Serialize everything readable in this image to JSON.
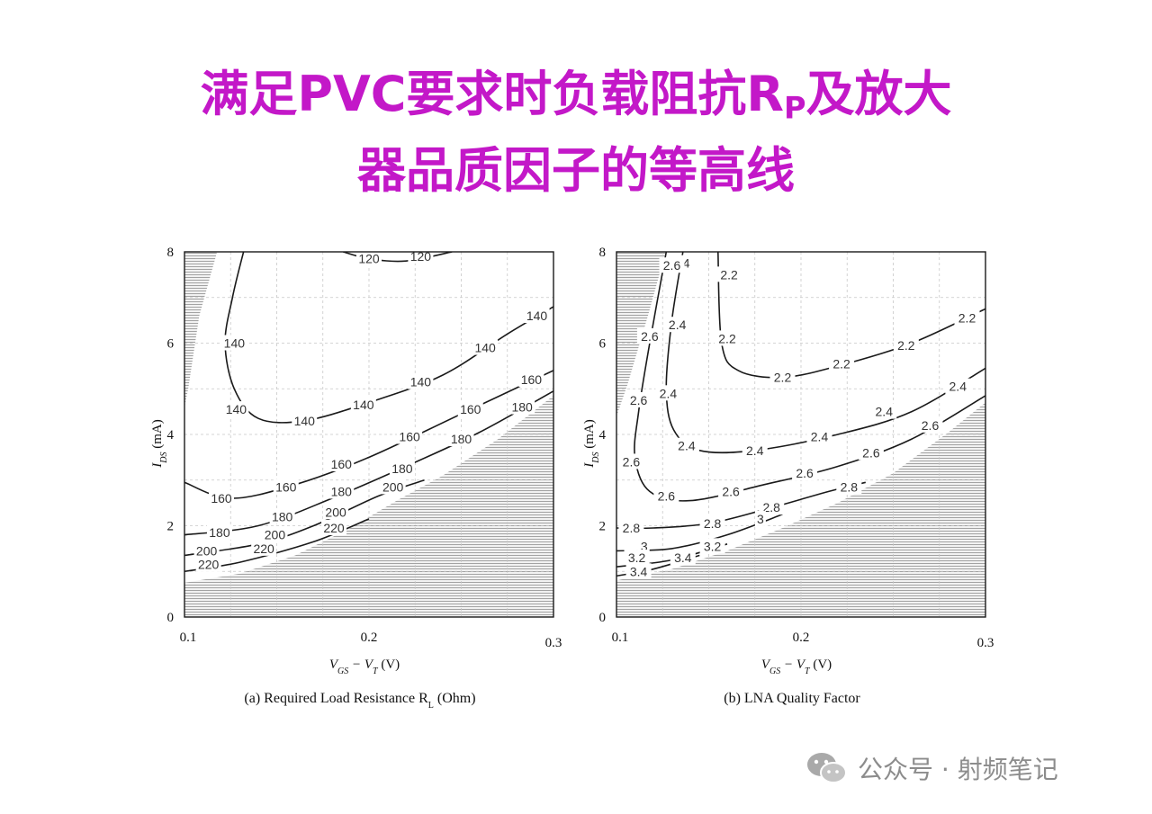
{
  "slide": {
    "title_line1_a": "满足PVC要求时负载阻抗R",
    "title_line1_sub": "P",
    "title_line1_b": "及放大",
    "title_line2": "器品质因子的等高线"
  },
  "watermark": {
    "text": "公众号 · 射频笔记",
    "icon": "wechat-icon"
  },
  "chart_data": [
    {
      "type": "contour",
      "caption": "(a) Required Load Resistance R",
      "caption_sub": "L",
      "caption_tail": " (Ohm)",
      "xlabel": "V",
      "xlabel_sub1": "GS",
      "xlabel_mid": " − V",
      "xlabel_sub2": "T",
      "xlabel_tail": " (V)",
      "ylabel": "I",
      "ylabel_sub": "DS",
      "ylabel_tail": " (mA)",
      "xlim": [
        0.1,
        0.3
      ],
      "ylim": [
        0,
        8
      ],
      "x_ticks": [
        "0.1",
        "0.2",
        "0.3"
      ],
      "y_ticks": [
        "0",
        "2",
        "4",
        "6",
        "8"
      ],
      "grid": true,
      "hatched_regions": [
        "upper-left",
        "lower-right"
      ],
      "contours": [
        {
          "level": "120",
          "points": [
            [
              0.186,
              8.0
            ],
            [
              0.2,
              7.85
            ],
            [
              0.22,
              7.8
            ],
            [
              0.245,
              8.0
            ]
          ],
          "labels": [
            [
              0.2,
              7.85
            ],
            [
              0.228,
              7.9
            ]
          ]
        },
        {
          "level": "140",
          "points": [
            [
              0.132,
              8.0
            ],
            [
              0.126,
              7.0
            ],
            [
              0.122,
              6.0
            ],
            [
              0.127,
              5.0
            ],
            [
              0.14,
              4.35
            ],
            [
              0.165,
              4.3
            ],
            [
              0.2,
              4.7
            ],
            [
              0.24,
              5.3
            ],
            [
              0.275,
              6.2
            ],
            [
              0.3,
              6.8
            ]
          ],
          "labels": [
            [
              0.127,
              6.0
            ],
            [
              0.128,
              4.55
            ],
            [
              0.165,
              4.3
            ],
            [
              0.197,
              4.65
            ],
            [
              0.228,
              5.15
            ],
            [
              0.263,
              5.9
            ],
            [
              0.291,
              6.6
            ]
          ]
        },
        {
          "level": "160",
          "points": [
            [
              0.1,
              2.95
            ],
            [
              0.125,
              2.6
            ],
            [
              0.16,
              2.9
            ],
            [
              0.2,
              3.5
            ],
            [
              0.25,
              4.45
            ],
            [
              0.3,
              5.4
            ]
          ],
          "labels": [
            [
              0.12,
              2.6
            ],
            [
              0.155,
              2.85
            ],
            [
              0.185,
              3.35
            ],
            [
              0.222,
              3.95
            ],
            [
              0.255,
              4.55
            ],
            [
              0.288,
              5.2
            ]
          ]
        },
        {
          "level": "180",
          "points": [
            [
              0.1,
              1.8
            ],
            [
              0.14,
              2.0
            ],
            [
              0.18,
              2.6
            ],
            [
              0.22,
              3.3
            ],
            [
              0.26,
              4.05
            ],
            [
              0.3,
              4.95
            ]
          ],
          "labels": [
            [
              0.119,
              1.85
            ],
            [
              0.153,
              2.2
            ],
            [
              0.185,
              2.75
            ],
            [
              0.218,
              3.25
            ],
            [
              0.25,
              3.9
            ],
            [
              0.283,
              4.6
            ]
          ]
        },
        {
          "level": "200",
          "points": [
            [
              0.1,
              1.35
            ],
            [
              0.14,
              1.6
            ],
            [
              0.17,
              2.0
            ],
            [
              0.205,
              2.65
            ],
            [
              0.23,
              3.0
            ]
          ],
          "labels": [
            [
              0.112,
              1.45
            ],
            [
              0.149,
              1.8
            ],
            [
              0.182,
              2.3
            ],
            [
              0.213,
              2.85
            ]
          ]
        },
        {
          "level": "220",
          "points": [
            [
              0.1,
              1.0
            ],
            [
              0.13,
              1.2
            ],
            [
              0.17,
              1.65
            ],
            [
              0.2,
              2.15
            ]
          ],
          "labels": [
            [
              0.113,
              1.15
            ],
            [
              0.143,
              1.5
            ],
            [
              0.181,
              1.95
            ]
          ]
        }
      ]
    },
    {
      "type": "contour",
      "caption": "(b) LNA Quality Factor",
      "caption_sub": "",
      "caption_tail": "",
      "xlabel": "V",
      "xlabel_sub1": "GS",
      "xlabel_mid": " − V",
      "xlabel_sub2": "T",
      "xlabel_tail": " (V)",
      "ylabel": "I",
      "ylabel_sub": "DS",
      "ylabel_tail": " (mA)",
      "xlim": [
        0.1,
        0.3
      ],
      "ylim": [
        0,
        8
      ],
      "x_ticks": [
        "0.1",
        "0.2",
        "0.3"
      ],
      "y_ticks": [
        "0",
        "2",
        "4",
        "6",
        "8"
      ],
      "grid": true,
      "hatched_regions": [
        "upper-left",
        "lower-right"
      ],
      "contours": [
        {
          "level": "2.2",
          "points": [
            [
              0.155,
              8.0
            ],
            [
              0.157,
              6.0
            ],
            [
              0.166,
              5.4
            ],
            [
              0.19,
              5.25
            ],
            [
              0.22,
              5.5
            ],
            [
              0.26,
              6.0
            ],
            [
              0.3,
              6.75
            ]
          ],
          "labels": [
            [
              0.161,
              7.5
            ],
            [
              0.16,
              6.1
            ],
            [
              0.19,
              5.25
            ],
            [
              0.222,
              5.55
            ],
            [
              0.257,
              5.95
            ],
            [
              0.29,
              6.55
            ]
          ]
        },
        {
          "level": "2.4",
          "points": [
            [
              0.136,
              8.0
            ],
            [
              0.13,
              6.5
            ],
            [
              0.127,
              5.0
            ],
            [
              0.131,
              4.1
            ],
            [
              0.145,
              3.65
            ],
            [
              0.175,
              3.65
            ],
            [
              0.22,
              4.0
            ],
            [
              0.26,
              4.5
            ],
            [
              0.3,
              5.45
            ]
          ],
          "labels": [
            [
              0.135,
              7.75
            ],
            [
              0.133,
              6.4
            ],
            [
              0.128,
              4.9
            ],
            [
              0.138,
              3.75
            ],
            [
              0.175,
              3.65
            ],
            [
              0.21,
              3.95
            ],
            [
              0.245,
              4.5
            ],
            [
              0.285,
              5.05
            ]
          ]
        },
        {
          "level": "2.6",
          "points": [
            [
              0.127,
              8.0
            ],
            [
              0.118,
              6.0
            ],
            [
              0.112,
              4.5
            ],
            [
              0.11,
              3.5
            ],
            [
              0.118,
              2.75
            ],
            [
              0.14,
              2.55
            ],
            [
              0.18,
              2.9
            ],
            [
              0.22,
              3.3
            ],
            [
              0.26,
              3.9
            ],
            [
              0.3,
              4.85
            ]
          ],
          "labels": [
            [
              0.13,
              7.7
            ],
            [
              0.118,
              6.15
            ],
            [
              0.112,
              4.75
            ],
            [
              0.108,
              3.4
            ],
            [
              0.127,
              2.65
            ],
            [
              0.162,
              2.75
            ],
            [
              0.202,
              3.15
            ],
            [
              0.238,
              3.6
            ],
            [
              0.27,
              4.2
            ]
          ]
        },
        {
          "level": "2.8",
          "points": [
            [
              0.1,
              1.95
            ],
            [
              0.12,
              1.95
            ],
            [
              0.15,
              2.05
            ],
            [
              0.18,
              2.35
            ],
            [
              0.215,
              2.75
            ],
            [
              0.235,
              2.95
            ]
          ],
          "labels": [
            [
              0.108,
              1.95
            ],
            [
              0.152,
              2.05
            ],
            [
              0.184,
              2.4
            ],
            [
              0.226,
              2.85
            ]
          ]
        },
        {
          "level": "3",
          "points": [
            [
              0.1,
              1.45
            ],
            [
              0.13,
              1.5
            ],
            [
              0.16,
              1.8
            ],
            [
              0.19,
              2.25
            ]
          ],
          "labels": [
            [
              0.115,
              1.55
            ],
            [
              0.178,
              2.15
            ]
          ]
        },
        {
          "level": "3.2",
          "points": [
            [
              0.1,
              1.1
            ],
            [
              0.13,
              1.25
            ],
            [
              0.16,
              1.6
            ]
          ],
          "labels": [
            [
              0.111,
              1.3
            ],
            [
              0.152,
              1.55
            ]
          ]
        },
        {
          "level": "3.4",
          "points": [
            [
              0.1,
              0.9
            ],
            [
              0.12,
              1.05
            ],
            [
              0.145,
              1.35
            ]
          ],
          "labels": [
            [
              0.112,
              1.0
            ],
            [
              0.136,
              1.3
            ]
          ]
        }
      ]
    }
  ]
}
